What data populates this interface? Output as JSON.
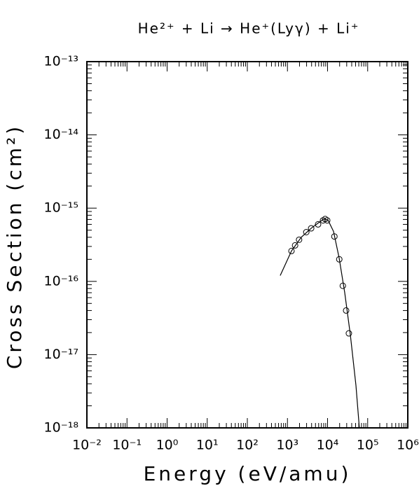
{
  "chart_data": {
    "type": "scatter",
    "title": "He²⁺ + Li → He⁺(Lyγ) + Li⁺",
    "x_label": "Energy (eV/amu)",
    "y_label": "Cross Section (cm²)",
    "log_x": true,
    "log_y": true,
    "xlim": [
      0.01,
      1000000
    ],
    "ylim": [
      1e-18,
      1e-13
    ],
    "xticks": [
      {
        "value": 0.01,
        "label": "10⁻²"
      },
      {
        "value": 0.1,
        "label": "10⁻¹"
      },
      {
        "value": 1,
        "label": "10⁰"
      },
      {
        "value": 10,
        "label": "10¹"
      },
      {
        "value": 100,
        "label": "10²"
      },
      {
        "value": 1000,
        "label": "10³"
      },
      {
        "value": 10000,
        "label": "10⁴"
      },
      {
        "value": 100000,
        "label": "10⁵"
      },
      {
        "value": 1000000,
        "label": "10⁶"
      }
    ],
    "yticks": [
      {
        "value": 1e-18,
        "label": "10⁻¹⁸"
      },
      {
        "value": 1e-17,
        "label": "10⁻¹⁷"
      },
      {
        "value": 1e-16,
        "label": "10⁻¹⁶"
      },
      {
        "value": 1e-15,
        "label": "10⁻¹⁵"
      },
      {
        "value": 1e-14,
        "label": "10⁻¹⁴"
      },
      {
        "value": 1e-13,
        "label": "10⁻¹³"
      }
    ],
    "series": [
      {
        "style": "markers",
        "color": "#000000",
        "x": [
          1260,
          1550,
          1950,
          2950,
          3900,
          5800,
          7700,
          8700,
          9800,
          14800,
          19600,
          24000,
          29000,
          34000
        ],
        "values": [
          2.6e-16,
          3.1e-16,
          3.7e-16,
          4.7e-16,
          5.3e-16,
          6e-16,
          6.8e-16,
          7.1e-16,
          6.8e-16,
          4.1e-16,
          2e-16,
          8.7e-17,
          4e-17,
          1.95e-17
        ]
      },
      {
        "style": "line",
        "color": "#000000",
        "x": [
          660,
          1260,
          2210,
          4050,
          8000,
          10200,
          14100,
          19400,
          26800,
          37000,
          51000,
          62000
        ],
        "values": [
          1.2e-16,
          2.6e-16,
          4e-16,
          5.4e-16,
          7.1e-16,
          6.9e-16,
          4.8e-16,
          2.1e-16,
          7e-17,
          1.86e-17,
          3.8e-18,
          1e-18
        ]
      }
    ]
  }
}
